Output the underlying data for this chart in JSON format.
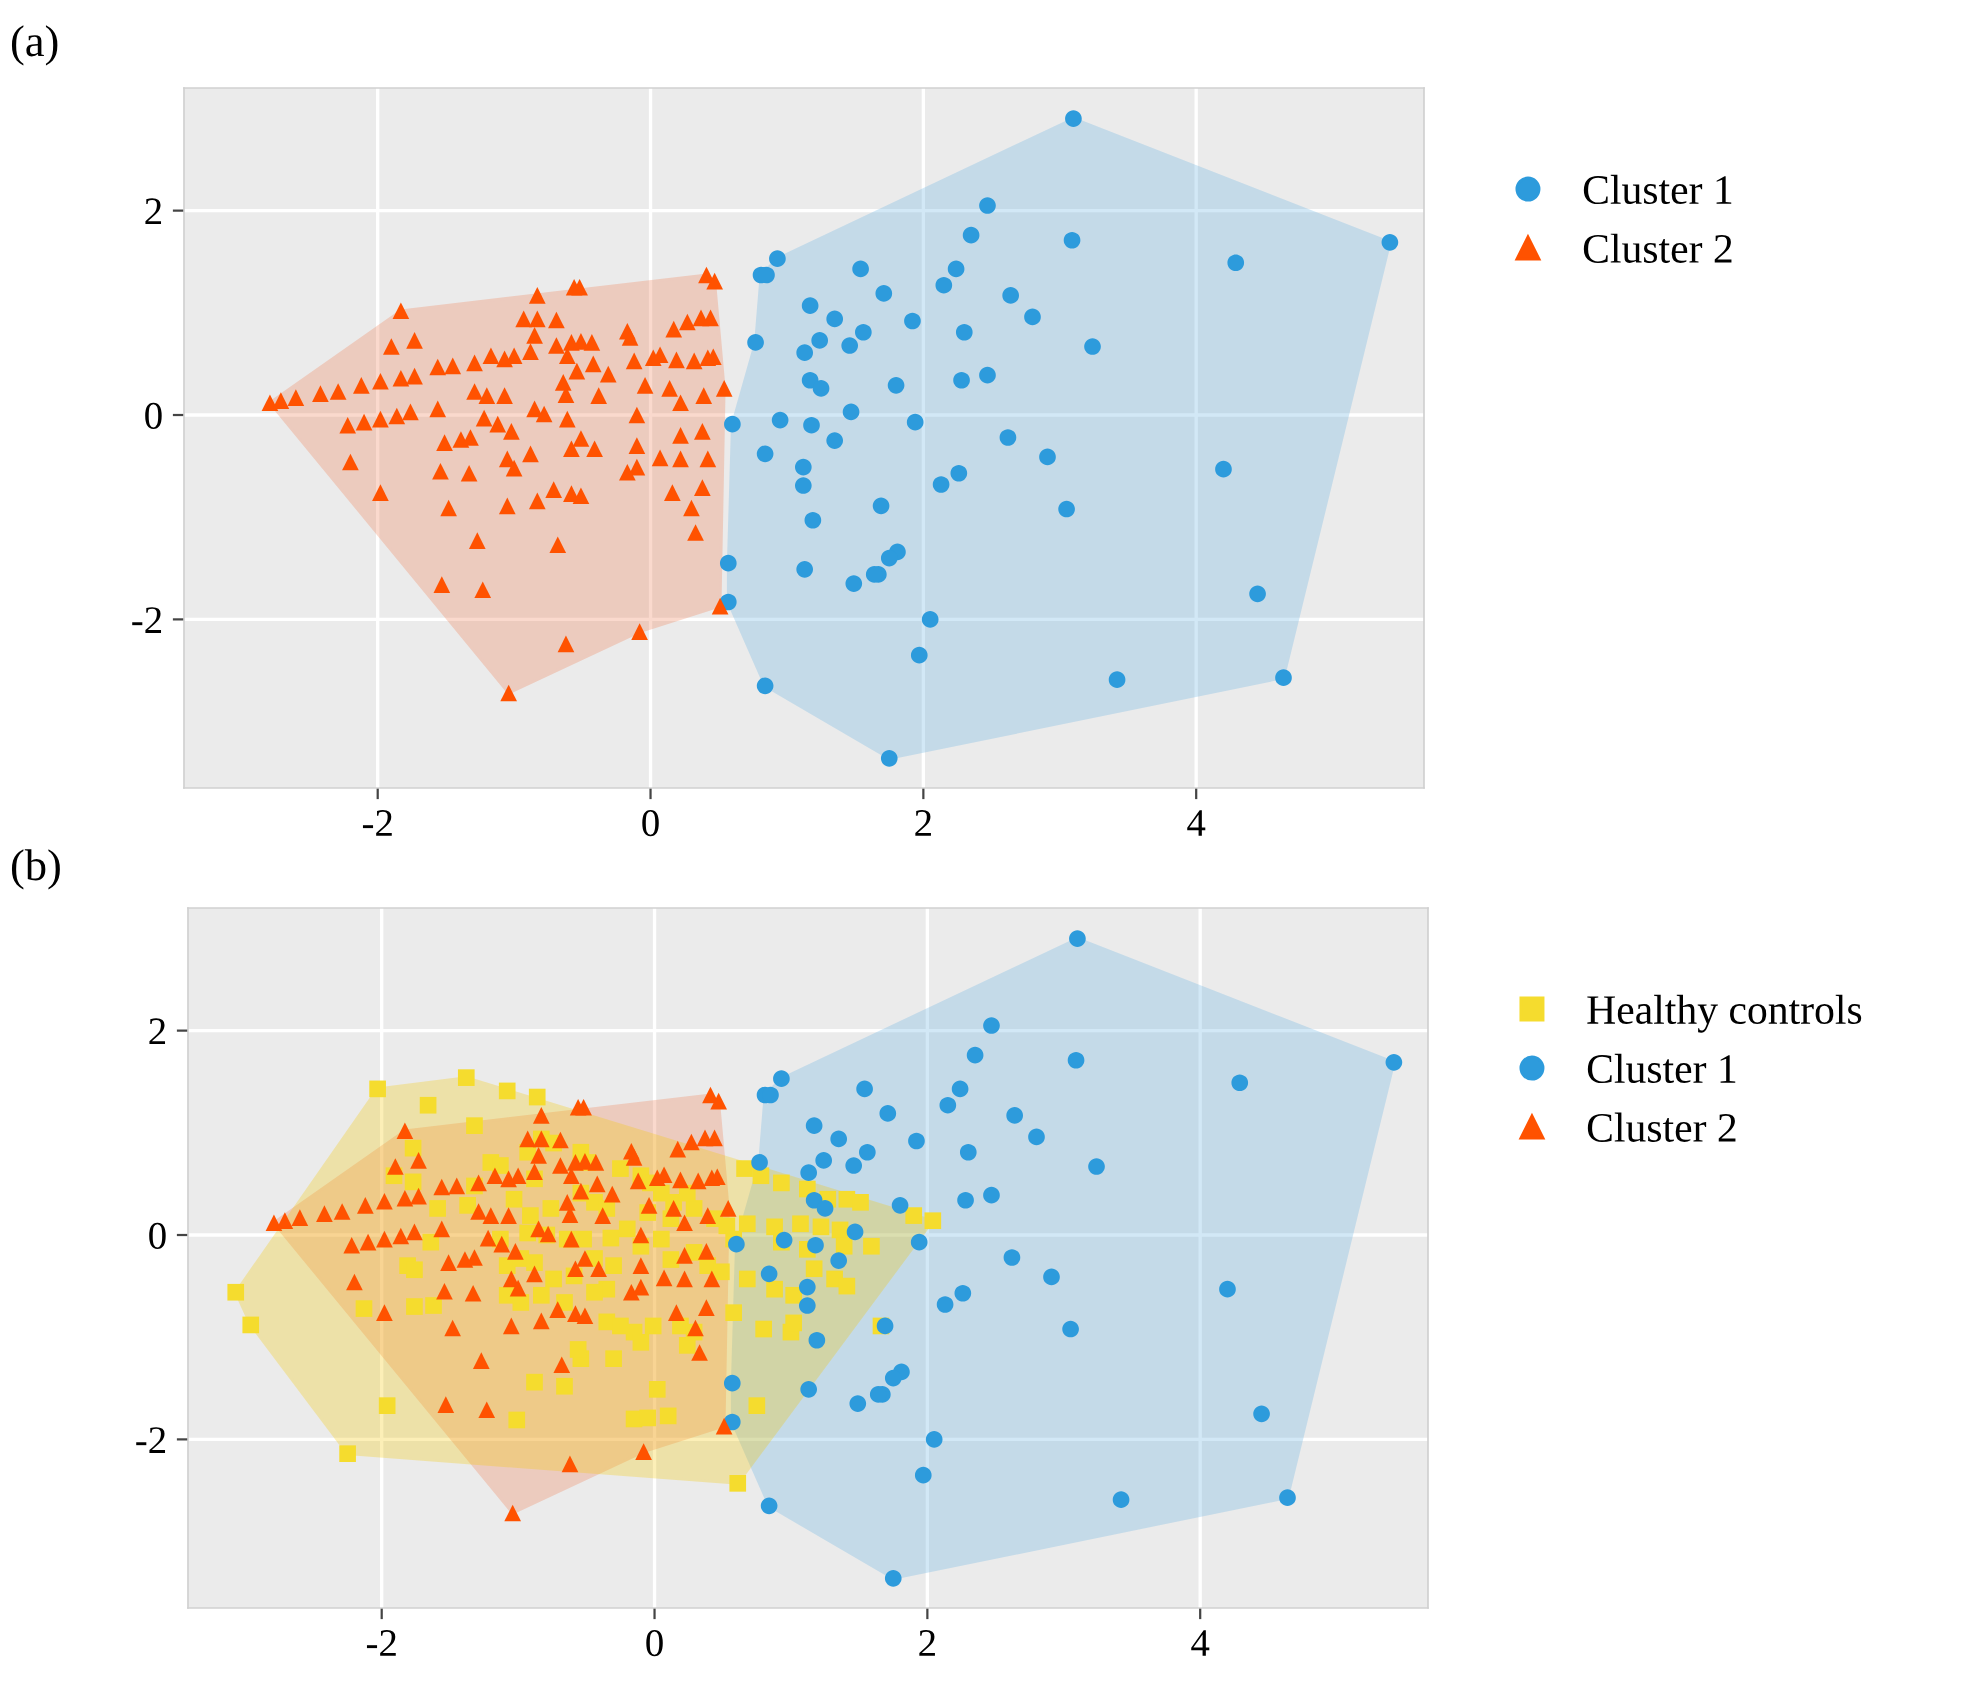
{
  "chart_data": [
    {
      "type": "scatter",
      "annotations": [
        "(a)"
      ],
      "xlim": [
        -3.42,
        5.67
      ],
      "ylim": [
        -3.65,
        3.2
      ],
      "xticks": [
        -2,
        0,
        2,
        4
      ],
      "yticks": [
        -2,
        0,
        2
      ],
      "grid": true,
      "legend": "right",
      "series": [
        {
          "type": "area",
          "color": "#62b0e2",
          "x": [
            3.1,
            5.42,
            4.64,
            1.75,
            0.84,
            0.57,
            0.57,
            0.6,
            0.77,
            0.81,
            0.93
          ],
          "values": [
            2.9,
            1.69,
            -2.57,
            -3.36,
            -2.65,
            -1.83,
            -1.45,
            -0.09,
            0.71,
            1.37,
            1.53
          ]
        },
        {
          "type": "area",
          "color": "#f07a4e",
          "x": [
            -2.79,
            -1.83,
            0.41,
            0.47,
            0.54,
            0.51,
            -0.08,
            -1.04
          ],
          "values": [
            0.12,
            1.02,
            1.37,
            1.31,
            0.26,
            -1.87,
            -2.12,
            -2.72
          ]
        },
        {
          "name": "Cluster 1",
          "color": "#2d9bdc",
          "marker": "circle",
          "x": [
            3.1,
            5.42,
            2.47,
            2.35,
            3.09,
            4.29,
            0.93,
            0.81,
            0.85,
            1.54,
            2.24,
            2.15,
            1.71,
            2.64,
            1.17,
            1.35,
            1.92,
            2.8,
            1.56,
            2.3,
            1.24,
            1.46,
            0.77,
            1.13,
            3.24,
            1.17,
            1.25,
            1.8,
            2.28,
            2.47,
            1.47,
            0.95,
            0.6,
            1.18,
            1.94,
            1.35,
            2.62,
            0.84,
            2.91,
            1.12,
            1.12,
            2.13,
            2.26,
            4.2,
            3.05,
            1.69,
            1.19,
            1.81,
            1.75,
            1.67,
            1.64,
            1.49,
            1.13,
            0.57,
            0.57,
            2.05,
            1.97,
            4.45,
            3.42,
            4.64,
            0.84,
            1.75
          ],
          "values": [
            2.9,
            1.69,
            2.05,
            1.76,
            1.71,
            1.49,
            1.53,
            1.37,
            1.37,
            1.43,
            1.43,
            1.27,
            1.19,
            1.17,
            1.07,
            0.94,
            0.92,
            0.96,
            0.81,
            0.81,
            0.73,
            0.68,
            0.71,
            0.61,
            0.67,
            0.34,
            0.26,
            0.29,
            0.34,
            0.39,
            0.03,
            -0.05,
            -0.09,
            -0.1,
            -0.07,
            -0.25,
            -0.22,
            -0.38,
            -0.41,
            -0.51,
            -0.69,
            -0.68,
            -0.57,
            -0.53,
            -0.92,
            -0.89,
            -1.03,
            -1.34,
            -1.4,
            -1.56,
            -1.56,
            -1.65,
            -1.51,
            -1.45,
            -1.83,
            -2.0,
            -2.35,
            -1.75,
            -2.59,
            -2.57,
            -2.65,
            -3.36
          ]
        },
        {
          "name": "Cluster 2",
          "color": "#ff5200",
          "marker": "triangle",
          "x": [
            -2.79,
            -2.71,
            -2.6,
            -2.42,
            -2.29,
            -2.12,
            -1.98,
            -1.83,
            -1.73,
            -1.83,
            -1.9,
            -1.73,
            -2.22,
            -2.1,
            -1.98,
            -1.86,
            -1.76,
            -2.2,
            -1.98,
            -1.56,
            -1.45,
            -1.56,
            -1.51,
            -1.39,
            -1.32,
            -1.54,
            -1.33,
            -1.48,
            -1.27,
            -1.53,
            -1.23,
            -1.29,
            -1.17,
            -1.07,
            -1.0,
            -0.88,
            -1.29,
            -1.2,
            -1.07,
            -1.22,
            -1.12,
            -1.02,
            -0.85,
            -0.78,
            -1.05,
            -1.0,
            -0.88,
            -1.05,
            -0.83,
            -0.71,
            -0.58,
            -0.51,
            -0.68,
            -0.62,
            -0.08,
            -1.04,
            -0.83,
            -0.56,
            -0.52,
            -0.93,
            -0.83,
            -0.69,
            -0.85,
            -0.69,
            -0.58,
            -0.51,
            -0.43,
            -0.61,
            -0.54,
            -0.42,
            -0.31,
            -0.64,
            -0.62,
            -0.38,
            -0.61,
            -0.51,
            -0.58,
            -0.41,
            -0.17,
            -0.15,
            -0.12,
            0.02,
            0.07,
            0.19,
            0.32,
            0.42,
            0.46,
            0.17,
            0.27,
            0.37,
            0.44,
            0.41,
            0.47,
            -0.04,
            0.14,
            0.22,
            0.39,
            0.54,
            -0.1,
            0.22,
            0.38,
            0.42,
            0.22,
            0.07,
            -0.1,
            -0.17,
            -0.1,
            0.16,
            0.38,
            0.3,
            0.33,
            0.51
          ],
          "values": [
            0.12,
            0.14,
            0.17,
            0.21,
            0.23,
            0.29,
            0.33,
            0.36,
            0.38,
            1.02,
            0.67,
            0.73,
            -0.1,
            -0.07,
            -0.04,
            -0.01,
            0.03,
            -0.46,
            -0.76,
            0.47,
            0.48,
            0.06,
            -0.27,
            -0.24,
            -0.22,
            -0.55,
            -0.57,
            -0.91,
            -1.23,
            -1.66,
            -1.71,
            0.51,
            0.58,
            0.55,
            0.58,
            0.62,
            0.23,
            0.19,
            0.19,
            -0.03,
            -0.09,
            -0.16,
            0.06,
            0.01,
            -0.43,
            -0.52,
            -0.38,
            -0.89,
            -0.84,
            -0.73,
            -0.77,
            -0.79,
            -1.27,
            -2.24,
            -2.12,
            -2.72,
            1.17,
            1.25,
            1.25,
            0.94,
            0.94,
            0.93,
            0.78,
            0.68,
            0.71,
            0.72,
            0.71,
            0.58,
            0.43,
            0.5,
            0.4,
            0.32,
            0.2,
            0.19,
            -0.04,
            -0.23,
            -0.33,
            -0.33,
            0.82,
            0.76,
            0.53,
            0.56,
            0.59,
            0.54,
            0.53,
            0.56,
            0.57,
            0.84,
            0.91,
            0.95,
            0.95,
            1.37,
            1.31,
            0.29,
            0.26,
            0.12,
            0.19,
            0.26,
            0.0,
            -0.2,
            -0.16,
            -0.43,
            -0.43,
            -0.42,
            -0.3,
            -0.56,
            -0.51,
            -0.76,
            -0.71,
            -0.91,
            -1.15,
            -1.87
          ]
        }
      ]
    },
    {
      "type": "scatter",
      "annotations": [
        "(b)"
      ],
      "xlim": [
        -3.42,
        5.67
      ],
      "ylim": [
        -3.65,
        3.2
      ],
      "xticks": [
        -2,
        0,
        2,
        4
      ],
      "yticks": [
        -2,
        0,
        2
      ],
      "grid": true,
      "legend": "right",
      "series": [
        {
          "type": "area",
          "color": "#62b0e2",
          "x": [
            3.1,
            5.42,
            4.64,
            1.75,
            0.84,
            0.57,
            0.57,
            0.6,
            0.77,
            0.81,
            0.93
          ],
          "values": [
            2.9,
            1.69,
            -2.57,
            -3.36,
            -2.65,
            -1.83,
            -1.45,
            -0.09,
            0.71,
            1.37,
            1.53
          ]
        },
        {
          "type": "area",
          "color": "#f07a4e",
          "x": [
            -2.79,
            -1.83,
            0.41,
            0.47,
            0.54,
            0.51,
            -0.08,
            -1.04
          ],
          "values": [
            0.12,
            1.02,
            1.37,
            1.31,
            0.26,
            -1.87,
            -2.12,
            -2.72
          ]
        },
        {
          "type": "area",
          "color": "#f5c800",
          "x": [
            -3.07,
            -2.03,
            -1.38,
            2.04,
            0.61,
            -2.25,
            -2.96
          ],
          "values": [
            -0.56,
            1.43,
            1.54,
            0.14,
            -2.43,
            -2.14,
            -0.88
          ]
        },
        {
          "name": "Healthy controls",
          "color": "#f5dc2e",
          "marker": "square",
          "x": [
            -1.38,
            -2.03,
            -3.07,
            -2.96,
            -2.25,
            0.61,
            2.04,
            1.66,
            -1.66,
            -1.08,
            -0.86,
            -1.32,
            -1.77,
            -1.91,
            -1.77,
            -1.59,
            -1.64,
            -1.81,
            -1.76,
            -2.13,
            -1.76,
            -1.62,
            -1.96,
            -1.01,
            -0.88,
            -0.66,
            -0.54,
            -0.56,
            -0.3,
            -0.15,
            -0.05,
            0.1,
            0.02,
            -1.32,
            -1.2,
            -1.13,
            -0.93,
            -0.83,
            -0.74,
            -0.54,
            -0.49,
            -1.03,
            -0.88,
            -0.91,
            -0.76,
            -1.37,
            -1.13,
            -0.93,
            -0.79,
            -0.64,
            -0.52,
            -1.08,
            -0.98,
            -0.88,
            -0.74,
            -0.59,
            -0.44,
            -0.3,
            -0.35,
            -1.08,
            -0.98,
            -0.83,
            -0.66,
            -0.44,
            -0.35,
            -0.25,
            -0.15,
            -0.1,
            -0.01,
            0.19,
            0.24,
            0.29,
            -0.32,
            -0.2,
            -0.1,
            0.05,
            0.12,
            0.29,
            0.39,
            0.49,
            -0.25,
            -0.1,
            -0.03,
            0.05,
            0.14,
            0.29,
            0.44,
            0.53,
            -0.05,
            0.12,
            0.24,
            -0.54,
            -0.44,
            -0.35,
            0.66,
            0.78,
            0.93,
            1.12,
            1.27,
            1.41,
            1.51,
            0.68,
            0.88,
            1.07,
            1.22,
            1.36,
            0.93,
            1.12,
            1.39,
            1.59,
            0.68,
            0.88,
            1.02,
            1.17,
            1.32,
            1.41,
            0.8,
            1.0,
            1.02,
            0.75,
            0.58,
            0.58,
            1.9
          ],
          "values": [
            1.54,
            1.43,
            -0.56,
            -0.88,
            -2.14,
            -2.43,
            0.14,
            -0.89,
            1.27,
            1.41,
            1.35,
            1.07,
            0.85,
            0.58,
            0.52,
            0.26,
            -0.07,
            -0.3,
            -0.34,
            -0.72,
            -0.7,
            -0.69,
            -1.67,
            -1.81,
            -1.44,
            -1.48,
            -1.21,
            -1.12,
            -1.21,
            -1.8,
            -1.79,
            -1.77,
            -1.51,
            0.48,
            0.71,
            0.68,
            0.81,
            0.94,
            0.9,
            0.81,
            0.71,
            0.35,
            0.55,
            0.19,
            0.26,
            0.29,
            -0.04,
            0.02,
            0.0,
            -0.04,
            -0.04,
            -0.3,
            -0.23,
            -0.27,
            -0.43,
            -0.4,
            -0.23,
            -0.3,
            -0.53,
            -0.59,
            -0.66,
            -0.59,
            -0.66,
            -0.56,
            -0.85,
            -0.89,
            -0.95,
            -1.05,
            -0.89,
            -0.89,
            -1.08,
            -0.95,
            -0.03,
            0.06,
            -0.11,
            -0.04,
            -0.24,
            -0.17,
            -0.3,
            -0.36,
            0.65,
            0.58,
            0.51,
            0.41,
            0.32,
            0.26,
            0.16,
            0.09,
            0.22,
            0.16,
            0.41,
            0.41,
            0.32,
            0.26,
            0.65,
            0.58,
            0.51,
            0.45,
            0.35,
            0.35,
            0.32,
            0.11,
            0.08,
            0.11,
            0.08,
            0.05,
            -0.07,
            -0.14,
            -0.11,
            -0.11,
            -0.43,
            -0.53,
            -0.59,
            -0.33,
            -0.43,
            -0.5,
            -0.92,
            -0.95,
            -0.86,
            -1.67,
            -0.76,
            -0.04,
            0.19
          ]
        },
        {
          "name": "Cluster 1",
          "color": "#2d9bdc",
          "marker": "circle",
          "x": [
            3.1,
            5.42,
            2.47,
            2.35,
            3.09,
            4.29,
            0.93,
            0.81,
            0.85,
            1.54,
            2.24,
            2.15,
            1.71,
            2.64,
            1.17,
            1.35,
            1.92,
            2.8,
            1.56,
            2.3,
            1.24,
            1.46,
            0.77,
            1.13,
            3.24,
            1.17,
            1.25,
            1.8,
            2.28,
            2.47,
            1.47,
            0.95,
            0.6,
            1.18,
            1.94,
            1.35,
            2.62,
            0.84,
            2.91,
            1.12,
            1.12,
            2.13,
            2.26,
            4.2,
            3.05,
            1.69,
            1.19,
            1.81,
            1.75,
            1.67,
            1.64,
            1.49,
            1.13,
            0.57,
            0.57,
            2.05,
            1.97,
            4.45,
            3.42,
            4.64,
            0.84,
            1.75
          ],
          "values": [
            2.9,
            1.69,
            2.05,
            1.76,
            1.71,
            1.49,
            1.53,
            1.37,
            1.37,
            1.43,
            1.43,
            1.27,
            1.19,
            1.17,
            1.07,
            0.94,
            0.92,
            0.96,
            0.81,
            0.81,
            0.73,
            0.68,
            0.71,
            0.61,
            0.67,
            0.34,
            0.26,
            0.29,
            0.34,
            0.39,
            0.03,
            -0.05,
            -0.09,
            -0.1,
            -0.07,
            -0.25,
            -0.22,
            -0.38,
            -0.41,
            -0.51,
            -0.69,
            -0.68,
            -0.57,
            -0.53,
            -0.92,
            -0.89,
            -1.03,
            -1.34,
            -1.4,
            -1.56,
            -1.56,
            -1.65,
            -1.51,
            -1.45,
            -1.83,
            -2.0,
            -2.35,
            -1.75,
            -2.59,
            -2.57,
            -2.65,
            -3.36
          ]
        },
        {
          "name": "Cluster 2",
          "color": "#ff5200",
          "marker": "triangle",
          "x": [
            -2.79,
            -2.71,
            -2.6,
            -2.42,
            -2.29,
            -2.12,
            -1.98,
            -1.83,
            -1.73,
            -1.83,
            -1.9,
            -1.73,
            -2.22,
            -2.1,
            -1.98,
            -1.86,
            -1.76,
            -2.2,
            -1.98,
            -1.56,
            -1.45,
            -1.56,
            -1.51,
            -1.39,
            -1.32,
            -1.54,
            -1.33,
            -1.48,
            -1.27,
            -1.53,
            -1.23,
            -1.29,
            -1.17,
            -1.07,
            -1.0,
            -0.88,
            -1.29,
            -1.2,
            -1.07,
            -1.22,
            -1.12,
            -1.02,
            -0.85,
            -0.78,
            -1.05,
            -1.0,
            -0.88,
            -1.05,
            -0.83,
            -0.71,
            -0.58,
            -0.51,
            -0.68,
            -0.62,
            -0.08,
            -1.04,
            -0.83,
            -0.56,
            -0.52,
            -0.93,
            -0.83,
            -0.69,
            -0.85,
            -0.69,
            -0.58,
            -0.51,
            -0.43,
            -0.61,
            -0.54,
            -0.42,
            -0.31,
            -0.64,
            -0.62,
            -0.38,
            -0.61,
            -0.51,
            -0.58,
            -0.41,
            -0.17,
            -0.15,
            -0.12,
            0.02,
            0.07,
            0.19,
            0.32,
            0.42,
            0.46,
            0.17,
            0.27,
            0.37,
            0.44,
            0.41,
            0.47,
            -0.04,
            0.14,
            0.22,
            0.39,
            0.54,
            -0.1,
            0.22,
            0.38,
            0.42,
            0.22,
            0.07,
            -0.1,
            -0.17,
            -0.1,
            0.16,
            0.38,
            0.3,
            0.33,
            0.51
          ],
          "values": [
            0.12,
            0.14,
            0.17,
            0.21,
            0.23,
            0.29,
            0.33,
            0.36,
            0.38,
            1.02,
            0.67,
            0.73,
            -0.1,
            -0.07,
            -0.04,
            -0.01,
            0.03,
            -0.46,
            -0.76,
            0.47,
            0.48,
            0.06,
            -0.27,
            -0.24,
            -0.22,
            -0.55,
            -0.57,
            -0.91,
            -1.23,
            -1.66,
            -1.71,
            0.51,
            0.58,
            0.55,
            0.58,
            0.62,
            0.23,
            0.19,
            0.19,
            -0.03,
            -0.09,
            -0.16,
            0.06,
            0.01,
            -0.43,
            -0.52,
            -0.38,
            -0.89,
            -0.84,
            -0.73,
            -0.77,
            -0.79,
            -1.27,
            -2.24,
            -2.12,
            -2.72,
            1.17,
            1.25,
            1.25,
            0.94,
            0.94,
            0.93,
            0.78,
            0.68,
            0.71,
            0.72,
            0.71,
            0.58,
            0.43,
            0.5,
            0.4,
            0.32,
            0.2,
            0.19,
            -0.04,
            -0.23,
            -0.33,
            -0.33,
            0.82,
            0.76,
            0.53,
            0.56,
            0.59,
            0.54,
            0.53,
            0.56,
            0.57,
            0.84,
            0.91,
            0.95,
            0.95,
            1.37,
            1.31,
            0.29,
            0.26,
            0.12,
            0.19,
            0.26,
            0.0,
            -0.2,
            -0.16,
            -0.43,
            -0.43,
            -0.42,
            -0.3,
            -0.56,
            -0.51,
            -0.76,
            -0.71,
            -0.91,
            -1.15,
            -1.87
          ]
        }
      ]
    }
  ]
}
